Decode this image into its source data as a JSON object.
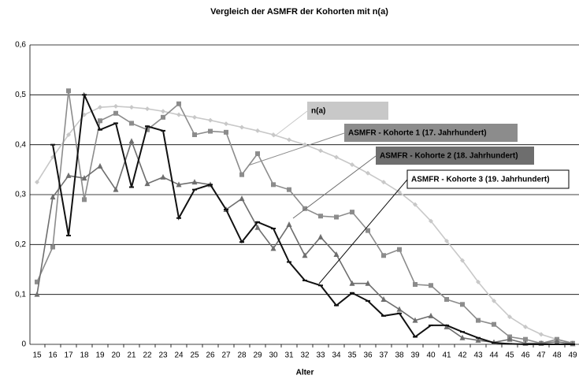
{
  "chart_data": {
    "type": "line",
    "title": "Vergleich der ASMFR der Kohorten mit n(a)",
    "x_label": "Alter",
    "categories": [
      "15",
      "16",
      "17",
      "18",
      "19",
      "20",
      "21",
      "22",
      "23",
      "24",
      "25",
      "26",
      "27",
      "28",
      "29",
      "30",
      "31",
      "32",
      "33",
      "34",
      "35",
      "36",
      "37",
      "38",
      "39",
      "40",
      "41",
      "42",
      "43",
      "44",
      "45",
      "46",
      "47",
      "48",
      "49"
    ],
    "ylim": [
      0,
      0.6
    ],
    "yticks": [
      0,
      {
        "value": 0.1,
        "label": "0,1"
      },
      {
        "value": 0.2,
        "label": "0,2"
      },
      {
        "value": 0.3,
        "label": "0,3"
      },
      {
        "value": 0.4,
        "label": "0,4"
      },
      {
        "value": 0.5,
        "label": "0,5"
      },
      {
        "value": 0.6,
        "label": "0,6"
      }
    ],
    "grid": true,
    "series": [
      {
        "name": "n(a)",
        "color": "#c8c8c8",
        "marker": "diamond",
        "values": [
          0.325,
          0.375,
          0.42,
          0.46,
          0.475,
          0.477,
          0.475,
          0.472,
          0.467,
          0.46,
          0.455,
          0.449,
          0.442,
          0.435,
          0.428,
          0.42,
          0.41,
          0.4,
          0.388,
          0.375,
          0.36,
          0.343,
          0.325,
          0.305,
          0.28,
          0.247,
          0.207,
          0.168,
          0.125,
          0.087,
          0.055,
          0.035,
          0.02,
          0.01,
          0.003
        ]
      },
      {
        "name": "ASMFR - Kohorte 1 (17. Jahrhundert)",
        "color": "#8c8c8c",
        "marker": "square",
        "values": [
          0.125,
          0.195,
          0.508,
          0.29,
          0.448,
          0.463,
          0.443,
          0.43,
          0.455,
          0.482,
          0.42,
          0.427,
          0.425,
          0.34,
          0.382,
          0.32,
          0.31,
          0.272,
          0.257,
          0.255,
          0.265,
          0.228,
          0.178,
          0.19,
          0.12,
          0.118,
          0.09,
          0.08,
          0.048,
          0.04,
          0.015,
          0.01,
          0.002,
          0.01,
          0.002
        ]
      },
      {
        "name": "ASMFR - Kohorte 2 (18. Jahrhundert)",
        "color": "#6e6e6e",
        "marker": "triangle",
        "values": [
          0.1,
          0.295,
          0.338,
          0.333,
          0.357,
          0.31,
          0.407,
          0.322,
          0.335,
          0.32,
          0.325,
          0.32,
          0.27,
          0.292,
          0.234,
          0.192,
          0.24,
          0.178,
          0.215,
          0.18,
          0.122,
          0.122,
          0.09,
          0.07,
          0.048,
          0.057,
          0.035,
          0.013,
          0.008,
          0.004,
          0.01,
          0.002,
          0.002,
          0.005,
          0.001
        ]
      },
      {
        "name": "ASMFR - Kohorte 3 (19. Jahrhundert)",
        "color": "#111111",
        "marker": "dash",
        "values": [
          null,
          0.4,
          0.218,
          0.5,
          0.43,
          0.443,
          0.315,
          0.437,
          0.428,
          0.253,
          0.31,
          0.32,
          0.27,
          0.205,
          0.245,
          0.232,
          0.165,
          0.128,
          0.118,
          0.078,
          0.103,
          0.087,
          0.057,
          0.062,
          0.015,
          0.038,
          0.038,
          0.025,
          0.013,
          0.003,
          0.001,
          0,
          0,
          0,
          0
        ]
      }
    ]
  }
}
